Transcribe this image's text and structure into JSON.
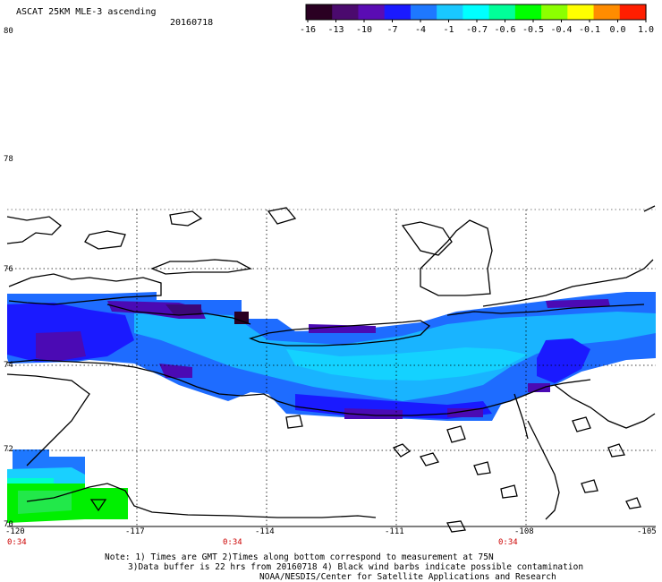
{
  "header": {
    "title": "ASCAT 25KM MLE-3 ascending",
    "date": "20160718"
  },
  "colorbar": {
    "labels": [
      "-16",
      "-13",
      "-10",
      "-7",
      "-4",
      "-1",
      "-0.7",
      "-0.6",
      "-0.5",
      "-0.4",
      "-0.1",
      "0.0",
      "1.0"
    ],
    "colors": [
      "#2a0022",
      "#4b0a6e",
      "#5a0cb4",
      "#1a1aff",
      "#1e78ff",
      "#19c8ff",
      "#00ffff",
      "#00ff99",
      "#00ff00",
      "#8cff00",
      "#ffff00",
      "#ff8c00",
      "#ff1e00"
    ]
  },
  "axes": {
    "lat_labels": [
      "80",
      "78",
      "76",
      "74",
      "72",
      "70"
    ],
    "lon_labels": [
      "-120",
      "-117",
      "-114",
      "-111",
      "-108",
      "-105"
    ],
    "time_labels": [
      "0:34",
      "0:34",
      "0:34"
    ]
  },
  "notes": {
    "line1": "Note: 1) Times are GMT 2)Times along bottom correspond to measurement at 75N",
    "line2": "3)Data buffer is 22 hrs from 20160718 4) Black wind barbs indicate possible contamination",
    "line3": "NOAA/NESDIS/Center for Satellite Applications and Research"
  }
}
